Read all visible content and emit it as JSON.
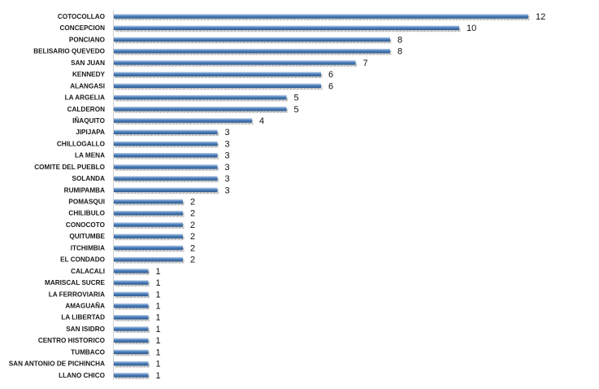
{
  "chart_data": {
    "type": "bar",
    "orientation": "horizontal",
    "title": "",
    "xlabel": "",
    "ylabel": "",
    "xlim": [
      0,
      12
    ],
    "grid": false,
    "legend": "none",
    "bar_color": "#4f81bd",
    "categories": [
      "COTOCOLLAO",
      "CONCEPCION",
      "PONCIANO",
      "BELISARIO QUEVEDO",
      "SAN JUAN",
      "KENNEDY",
      "ALANGASI",
      "LA ARGELIA",
      "CALDERON",
      "IÑAQUITO",
      "JIPIJAPA",
      "CHILLOGALLO",
      "LA MENA",
      "COMITE DEL PUEBLO",
      "SOLANDA",
      "RUMIPAMBA",
      "POMASQUI",
      "CHILIBULO",
      "CONOCOTO",
      "QUITUMBE",
      "ITCHIMBIA",
      "EL CONDADO",
      "CALACALI",
      "MARISCAL SUCRE",
      "LA FERROVIARIA",
      "AMAGUAÑA",
      "LA LIBERTAD",
      "SAN ISIDRO",
      "CENTRO HISTORICO",
      "TUMBACO",
      "SAN ANTONIO DE PICHINCHA",
      "LLANO CHICO"
    ],
    "values": [
      12,
      10,
      8,
      8,
      7,
      6,
      6,
      5,
      5,
      4,
      3,
      3,
      3,
      3,
      3,
      3,
      2,
      2,
      2,
      2,
      2,
      2,
      1,
      1,
      1,
      1,
      1,
      1,
      1,
      1,
      1,
      1
    ]
  }
}
